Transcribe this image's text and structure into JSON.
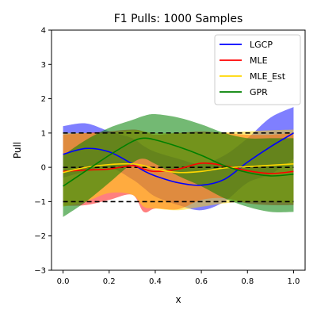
{
  "chart_data": {
    "type": "line",
    "title": "F1 Pulls: 1000 Samples",
    "xlabel": "x",
    "ylabel": "Pull",
    "xlim": [
      -0.05,
      1.05
    ],
    "ylim": [
      -3,
      4
    ],
    "xticks": [
      "0.0",
      "0.2",
      "0.4",
      "0.6",
      "0.8",
      "1.0"
    ],
    "xtick_values": [
      0.0,
      0.2,
      0.4,
      0.6,
      0.8,
      1.0
    ],
    "yticks": [
      "−3",
      "−2",
      "−1",
      "0",
      "1",
      "2",
      "3",
      "4"
    ],
    "ytick_values": [
      -3,
      -2,
      -1,
      0,
      1,
      2,
      3,
      4
    ],
    "grid": false,
    "legend_position": "top-right",
    "reference_lines": [
      {
        "y": 1,
        "style": "dashed",
        "color": "#000000"
      },
      {
        "y": 0,
        "style": "dashed",
        "color": "#000000"
      },
      {
        "y": -1,
        "style": "dashed",
        "color": "#000000"
      }
    ],
    "x": [
      0.0,
      0.1,
      0.2,
      0.3,
      0.35,
      0.4,
      0.5,
      0.6,
      0.7,
      0.8,
      0.9,
      1.0
    ],
    "series": [
      {
        "name": "LGCP",
        "color": "#0000ff",
        "values": [
          0.38,
          0.55,
          0.45,
          0.1,
          -0.1,
          -0.25,
          -0.45,
          -0.52,
          -0.35,
          0.15,
          0.6,
          1.0
        ],
        "band_upper": [
          1.2,
          1.28,
          1.05,
          0.85,
          0.62,
          0.45,
          0.25,
          0.1,
          0.35,
          0.85,
          1.45,
          1.76
        ],
        "band_lower": [
          -0.3,
          -0.12,
          0.0,
          -0.35,
          -0.6,
          -0.85,
          -1.1,
          -1.25,
          -1.0,
          -0.45,
          -0.2,
          0.25
        ],
        "band_alpha": 0.5
      },
      {
        "name": "MLE",
        "color": "#ff0000",
        "values": [
          -0.12,
          -0.08,
          -0.05,
          0.05,
          -0.05,
          -0.12,
          -0.05,
          0.12,
          0.05,
          -0.1,
          -0.18,
          -0.12
        ],
        "band_upper": [
          0.95,
          1.0,
          1.05,
          1.1,
          1.05,
          0.95,
          1.0,
          1.05,
          1.0,
          0.95,
          0.95,
          1.0
        ],
        "band_lower": [
          -1.12,
          -1.1,
          -0.95,
          -0.8,
          -1.3,
          -1.2,
          -1.22,
          -0.95,
          -0.9,
          -1.05,
          -1.1,
          -1.1
        ],
        "band_alpha": 0.5
      },
      {
        "name": "MLE_Est",
        "color": "#ffd700",
        "values": [
          -0.15,
          0.0,
          0.08,
          0.1,
          0.05,
          -0.05,
          -0.15,
          -0.12,
          -0.02,
          0.02,
          0.06,
          0.1
        ],
        "band_upper": [
          1.0,
          1.0,
          1.0,
          1.08,
          1.05,
          1.0,
          1.0,
          1.0,
          1.02,
          1.05,
          1.08,
          1.1
        ],
        "band_lower": [
          -1.15,
          -1.0,
          -0.75,
          -0.8,
          -1.15,
          -1.2,
          -1.25,
          -1.15,
          -1.05,
          -1.0,
          -1.0,
          -1.05
        ],
        "band_alpha": 0.5
      },
      {
        "name": "GPR",
        "color": "#008000",
        "values": [
          -0.55,
          -0.1,
          0.35,
          0.75,
          0.85,
          0.8,
          0.6,
          0.35,
          0.05,
          -0.15,
          -0.25,
          -0.2
        ],
        "band_upper": [
          0.35,
          0.8,
          1.15,
          1.38,
          1.5,
          1.55,
          1.45,
          1.25,
          1.0,
          0.85,
          0.85,
          0.85
        ],
        "band_lower": [
          -1.45,
          -1.0,
          -0.45,
          0.12,
          0.25,
          0.1,
          -0.25,
          -0.55,
          -0.9,
          -1.15,
          -1.3,
          -1.3
        ],
        "band_alpha": 0.55
      }
    ]
  }
}
